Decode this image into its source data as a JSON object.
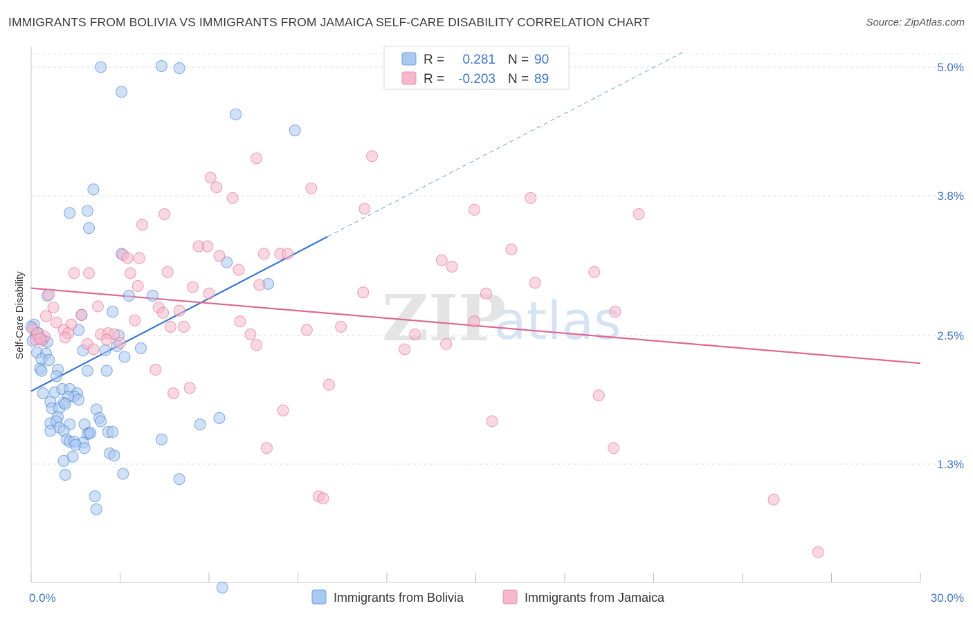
{
  "title": "IMMIGRANTS FROM BOLIVIA VS IMMIGRANTS FROM JAMAICA SELF-CARE DISABILITY CORRELATION CHART",
  "source": "Source: ZipAtlas.com",
  "watermark": {
    "zip": "ZIP",
    "atlas": "atlas"
  },
  "legend_box": {
    "rows": [
      {
        "r_label": "R =",
        "r_value": "0.281",
        "n_label": "N =",
        "n_value": "90",
        "color": "#a9c9f0"
      },
      {
        "r_label": "R =",
        "r_value": "-0.203",
        "n_label": "N =",
        "n_value": "89",
        "color": "#f6b8cb"
      }
    ]
  },
  "chart_data": {
    "type": "scatter",
    "title": "IMMIGRANTS FROM BOLIVIA VS IMMIGRANTS FROM JAMAICA SELF-CARE DISABILITY CORRELATION CHART",
    "xlabel": "",
    "ylabel": "Self-Care Disability",
    "xlim": [
      0,
      30
    ],
    "ylim": [
      0,
      5.2
    ],
    "x_tick_labels": [
      "0.0%",
      "30.0%"
    ],
    "y_ticks": [
      1.3,
      2.5,
      3.8,
      5.0
    ],
    "y_tick_labels": [
      "1.3%",
      "2.5%",
      "3.8%",
      "5.0%"
    ],
    "grid": true,
    "legend_position": "bottom",
    "series": [
      {
        "name": "Immigrants from Bolivia",
        "color": "#3a76d0",
        "fill": "#a9c9f0",
        "trend": {
          "x0": 0,
          "y0": 1.98,
          "x1": 10.0,
          "y1": 3.42,
          "dash_to_x": 22.0,
          "dash_to_y": 5.14
        },
        "points": [
          [
            2.35,
            5.0
          ],
          [
            4.4,
            5.01
          ],
          [
            5.0,
            4.99
          ],
          [
            3.05,
            4.77
          ],
          [
            6.9,
            4.56
          ],
          [
            8.9,
            4.41
          ],
          [
            2.1,
            3.86
          ],
          [
            1.9,
            3.66
          ],
          [
            1.3,
            3.64
          ],
          [
            1.95,
            3.5
          ],
          [
            3.05,
            3.26
          ],
          [
            6.6,
            3.18
          ],
          [
            8.0,
            2.98
          ],
          [
            3.3,
            2.87
          ],
          [
            4.1,
            2.87
          ],
          [
            0.55,
            2.87
          ],
          [
            1.7,
            2.69
          ],
          [
            2.75,
            2.72
          ],
          [
            0.1,
            2.6
          ],
          [
            0.15,
            2.5
          ],
          [
            0.25,
            2.52
          ],
          [
            0.4,
            2.46
          ],
          [
            0.55,
            2.44
          ],
          [
            1.6,
            2.55
          ],
          [
            2.95,
            2.5
          ],
          [
            2.9,
            2.4
          ],
          [
            3.7,
            2.38
          ],
          [
            1.75,
            2.36
          ],
          [
            2.5,
            2.36
          ],
          [
            3.15,
            2.3
          ],
          [
            0.2,
            2.34
          ],
          [
            0.5,
            2.33
          ],
          [
            0.35,
            2.28
          ],
          [
            0.6,
            2.27
          ],
          [
            0.3,
            2.19
          ],
          [
            0.35,
            2.17
          ],
          [
            0.9,
            2.18
          ],
          [
            0.85,
            2.12
          ],
          [
            1.9,
            2.17
          ],
          [
            2.55,
            2.17
          ],
          [
            0.4,
            1.96
          ],
          [
            0.65,
            1.88
          ],
          [
            0.8,
            1.97
          ],
          [
            1.05,
            2.0
          ],
          [
            1.3,
            2.0
          ],
          [
            1.55,
            1.96
          ],
          [
            1.45,
            1.93
          ],
          [
            1.25,
            1.93
          ],
          [
            1.1,
            1.87
          ],
          [
            1.6,
            1.9
          ],
          [
            0.7,
            1.82
          ],
          [
            0.95,
            1.82
          ],
          [
            1.15,
            1.86
          ],
          [
            2.2,
            1.81
          ],
          [
            0.9,
            1.74
          ],
          [
            2.3,
            1.73
          ],
          [
            2.35,
            1.7
          ],
          [
            6.35,
            1.73
          ],
          [
            5.7,
            1.67
          ],
          [
            0.65,
            1.68
          ],
          [
            0.85,
            1.7
          ],
          [
            0.95,
            1.64
          ],
          [
            1.3,
            1.67
          ],
          [
            1.8,
            1.67
          ],
          [
            1.1,
            1.61
          ],
          [
            0.65,
            1.61
          ],
          [
            1.95,
            1.59
          ],
          [
            1.9,
            1.58
          ],
          [
            2.0,
            1.59
          ],
          [
            2.6,
            1.6
          ],
          [
            2.75,
            1.6
          ],
          [
            1.2,
            1.53
          ],
          [
            1.3,
            1.51
          ],
          [
            1.45,
            1.51
          ],
          [
            1.75,
            1.5
          ],
          [
            1.5,
            1.48
          ],
          [
            1.8,
            1.45
          ],
          [
            4.4,
            1.53
          ],
          [
            2.65,
            1.4
          ],
          [
            2.8,
            1.38
          ],
          [
            1.4,
            1.37
          ],
          [
            1.1,
            1.33
          ],
          [
            1.15,
            1.2
          ],
          [
            3.1,
            1.21
          ],
          [
            5.0,
            1.16
          ],
          [
            2.15,
            1.0
          ],
          [
            2.2,
            0.88
          ],
          [
            6.45,
            0.15
          ],
          [
            0.05,
            2.45
          ],
          [
            0.0,
            2.58
          ]
        ]
      },
      {
        "name": "Immigrants from Jamaica",
        "color": "#e06691",
        "fill": "#f6b8cb",
        "trend": {
          "x0": 0,
          "y0": 2.94,
          "x1": 30,
          "y1": 2.24
        },
        "points": [
          [
            11.5,
            4.17
          ],
          [
            7.6,
            4.15
          ],
          [
            6.05,
            3.97
          ],
          [
            6.25,
            3.88
          ],
          [
            9.45,
            3.87
          ],
          [
            6.8,
            3.78
          ],
          [
            16.85,
            3.78
          ],
          [
            11.25,
            3.68
          ],
          [
            14.95,
            3.67
          ],
          [
            4.5,
            3.63
          ],
          [
            20.5,
            3.63
          ],
          [
            3.75,
            3.53
          ],
          [
            5.65,
            3.33
          ],
          [
            5.95,
            3.33
          ],
          [
            16.2,
            3.3
          ],
          [
            7.85,
            3.26
          ],
          [
            8.4,
            3.26
          ],
          [
            8.65,
            3.26
          ],
          [
            3.1,
            3.25
          ],
          [
            3.25,
            3.22
          ],
          [
            3.65,
            3.22
          ],
          [
            6.35,
            3.24
          ],
          [
            13.85,
            3.2
          ],
          [
            14.2,
            3.14
          ],
          [
            1.45,
            3.08
          ],
          [
            1.95,
            3.08
          ],
          [
            3.35,
            3.08
          ],
          [
            4.6,
            3.09
          ],
          [
            7.0,
            3.11
          ],
          [
            19.0,
            3.09
          ],
          [
            7.7,
            2.97
          ],
          [
            17.0,
            2.99
          ],
          [
            3.6,
            2.96
          ],
          [
            5.45,
            2.95
          ],
          [
            6.0,
            2.89
          ],
          [
            11.2,
            2.9
          ],
          [
            15.35,
            2.89
          ],
          [
            0.6,
            2.88
          ],
          [
            0.75,
            2.76
          ],
          [
            2.25,
            2.77
          ],
          [
            4.3,
            2.76
          ],
          [
            5.0,
            2.73
          ],
          [
            4.45,
            2.71
          ],
          [
            19.7,
            2.72
          ],
          [
            0.5,
            2.68
          ],
          [
            1.7,
            2.69
          ],
          [
            3.5,
            2.64
          ],
          [
            7.05,
            2.63
          ],
          [
            14.95,
            2.63
          ],
          [
            0.85,
            2.62
          ],
          [
            1.35,
            2.6
          ],
          [
            4.7,
            2.58
          ],
          [
            5.15,
            2.58
          ],
          [
            10.45,
            2.58
          ],
          [
            1.1,
            2.55
          ],
          [
            1.25,
            2.52
          ],
          [
            2.35,
            2.51
          ],
          [
            2.6,
            2.52
          ],
          [
            2.8,
            2.51
          ],
          [
            7.4,
            2.51
          ],
          [
            9.3,
            2.55
          ],
          [
            12.95,
            2.51
          ],
          [
            1.15,
            2.48
          ],
          [
            2.55,
            2.46
          ],
          [
            7.6,
            2.41
          ],
          [
            0.35,
            2.45
          ],
          [
            0.45,
            2.49
          ],
          [
            1.9,
            2.42
          ],
          [
            3.0,
            2.43
          ],
          [
            2.1,
            2.37
          ],
          [
            12.6,
            2.37
          ],
          [
            14.0,
            2.42
          ],
          [
            4.2,
            2.18
          ],
          [
            10.05,
            2.04
          ],
          [
            5.35,
            2.01
          ],
          [
            4.8,
            1.96
          ],
          [
            19.15,
            1.94
          ],
          [
            8.5,
            1.8
          ],
          [
            15.55,
            1.7
          ],
          [
            7.95,
            1.45
          ],
          [
            19.65,
            1.45
          ],
          [
            9.7,
            1.0
          ],
          [
            9.85,
            0.98
          ],
          [
            25.05,
            0.97
          ],
          [
            26.55,
            0.48
          ],
          [
            0.05,
            2.56
          ],
          [
            0.15,
            2.46
          ],
          [
            0.2,
            2.52
          ],
          [
            0.3,
            2.47
          ]
        ]
      }
    ]
  }
}
